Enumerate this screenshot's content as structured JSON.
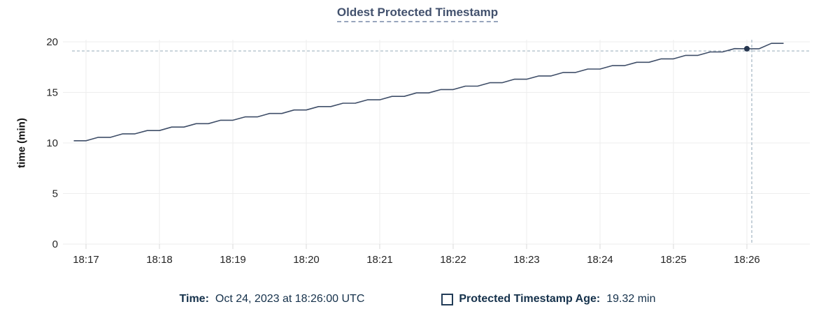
{
  "chart_data": {
    "type": "line",
    "title": "Oldest Protected Timestamp",
    "xlabel": "",
    "ylabel": "time (min)",
    "ylim": [
      0,
      20
    ],
    "y_ticks": [
      0,
      5,
      10,
      15,
      20
    ],
    "x_ticks": [
      "18:17",
      "18:18",
      "18:19",
      "18:20",
      "18:21",
      "18:22",
      "18:23",
      "18:24",
      "18:25",
      "18:26"
    ],
    "grid": true,
    "legend_position": "bottom",
    "series": [
      {
        "name": "Protected Timestamp Age",
        "unit": "min",
        "start_time": "18:16:50",
        "interval_seconds": 10,
        "values": [
          10.22,
          10.22,
          10.56,
          10.56,
          10.9,
          10.9,
          11.23,
          11.23,
          11.57,
          11.57,
          11.91,
          11.91,
          12.25,
          12.25,
          12.58,
          12.58,
          12.92,
          12.92,
          13.26,
          13.26,
          13.6,
          13.6,
          13.93,
          13.93,
          14.27,
          14.27,
          14.61,
          14.61,
          14.95,
          14.95,
          15.28,
          15.28,
          15.62,
          15.62,
          15.96,
          15.96,
          16.3,
          16.3,
          16.63,
          16.63,
          16.97,
          16.97,
          17.31,
          17.31,
          17.65,
          17.65,
          17.98,
          17.98,
          18.32,
          18.32,
          18.66,
          18.66,
          19.0,
          19.0,
          19.33,
          19.32,
          19.32,
          19.85,
          19.85
        ]
      }
    ],
    "hover": {
      "time": "18:26:00",
      "value": 19.32,
      "crosshair_x_time": "18:26:04",
      "crosshair_y_value": 19.1
    }
  },
  "footer": {
    "time_label": "Time:",
    "time_value": "Oct 24, 2023 at 18:26:00 UTC",
    "series_label": "Protected Timestamp Age:",
    "series_value": "19.32 min"
  },
  "colors": {
    "series_line": "#3f4e68",
    "hover_dot": "#26364f",
    "crosshair": "#a2b4c1",
    "gridline": "#ededed",
    "tick": "#d8d8d8",
    "axis_text": "#262626",
    "title_text": "#42516d",
    "legend_text": "#15314b"
  }
}
